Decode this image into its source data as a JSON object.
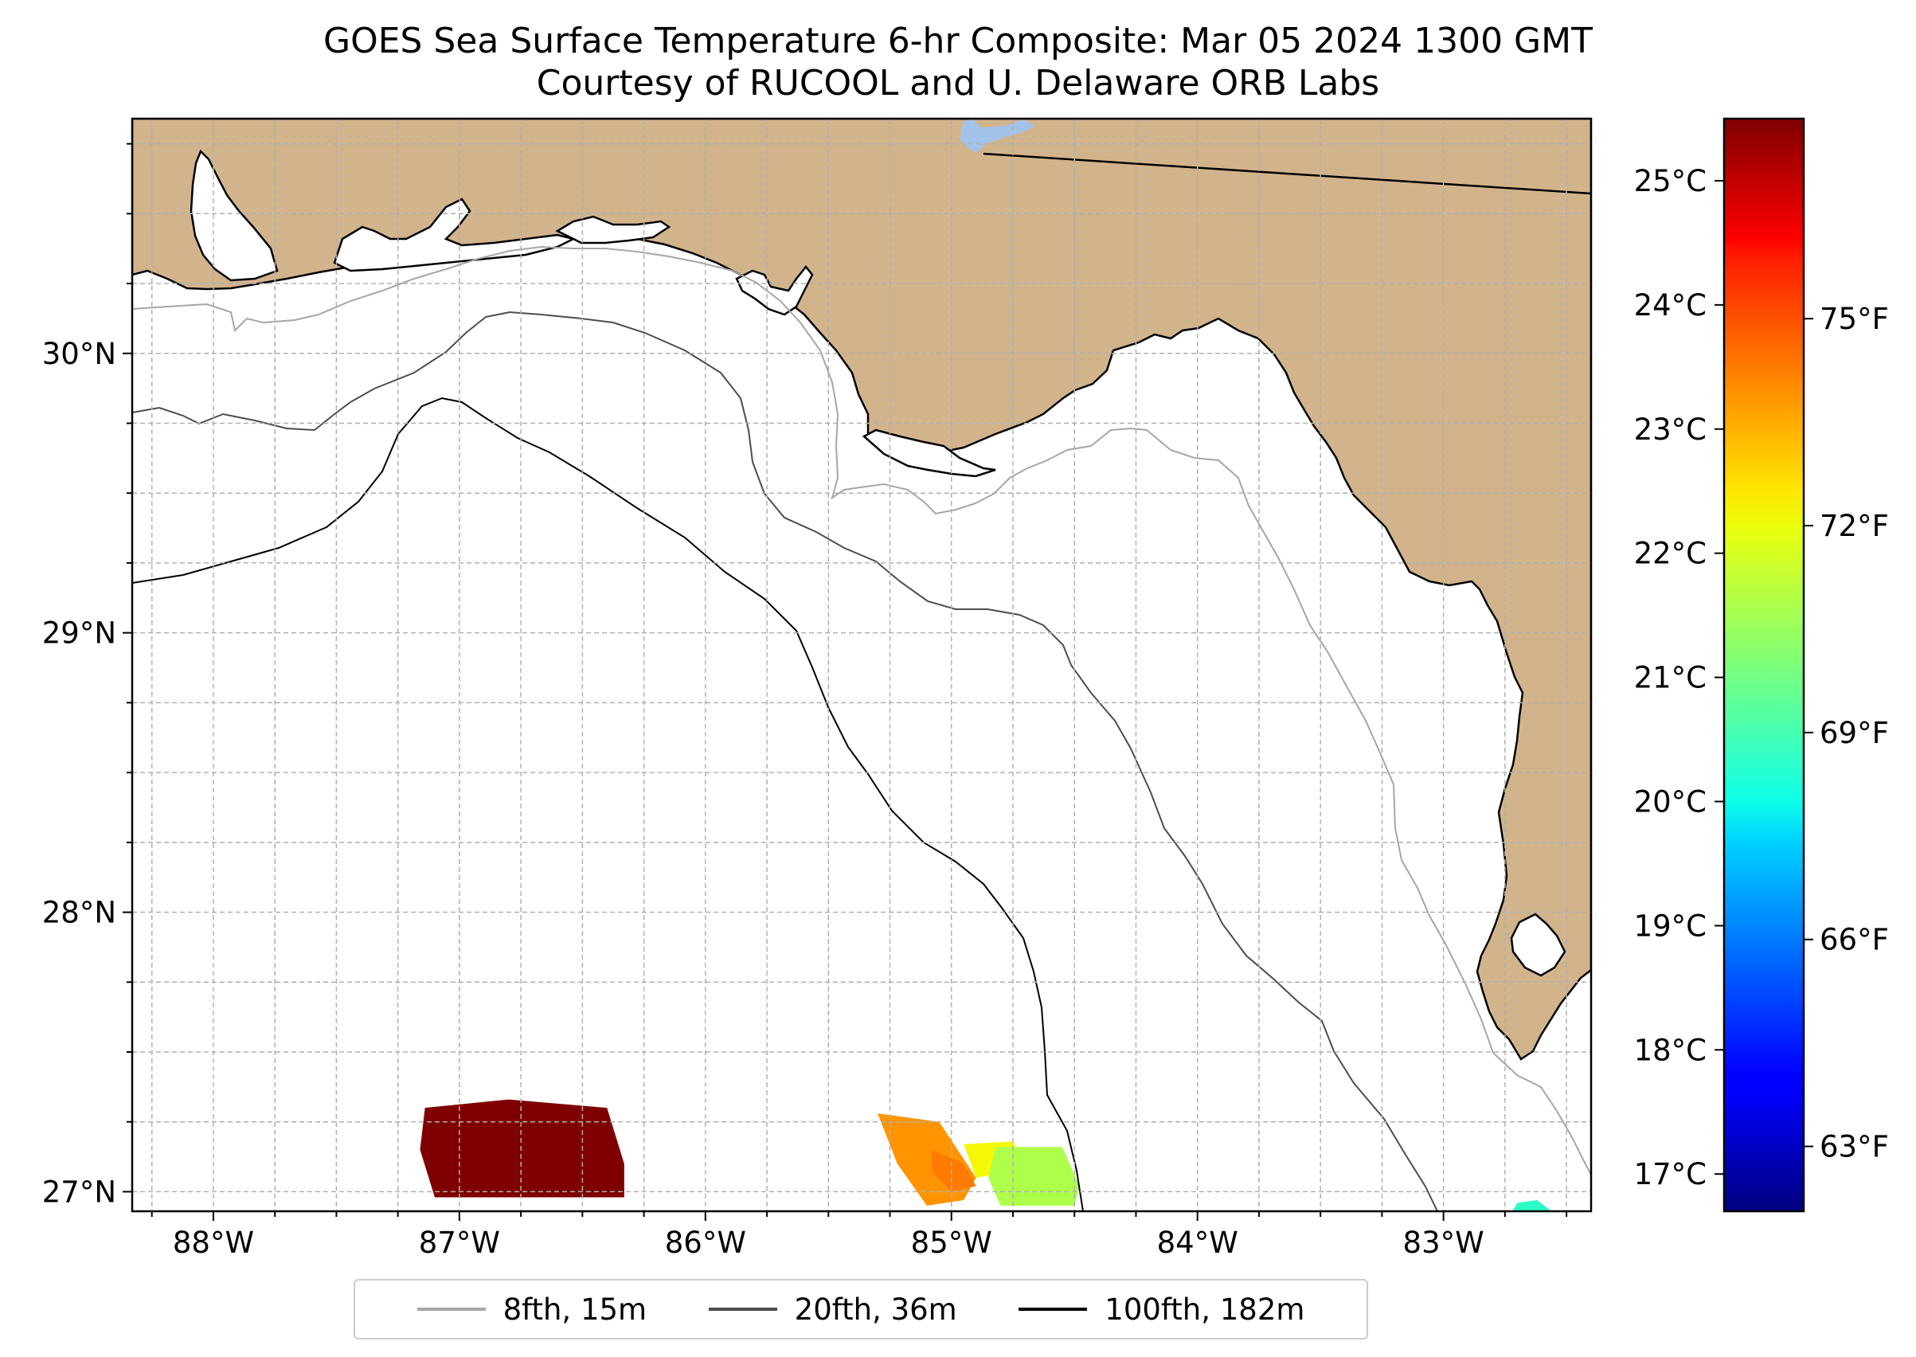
{
  "title": {
    "line1": "GOES Sea Surface Temperature 6-hr Composite: Mar 05 2024 1300 GMT",
    "line2": "Courtesy of RUCOOL and U. Delaware ORB Labs"
  },
  "map": {
    "lon_range": [
      -88.33,
      -82.4
    ],
    "lat_range": [
      26.93,
      30.84
    ],
    "lon_ticks": [
      {
        "value": -88,
        "label": "88°W"
      },
      {
        "value": -87,
        "label": "87°W"
      },
      {
        "value": -86,
        "label": "86°W"
      },
      {
        "value": -85,
        "label": "85°W"
      },
      {
        "value": -84,
        "label": "84°W"
      },
      {
        "value": -83,
        "label": "83°W"
      }
    ],
    "lat_ticks": [
      {
        "value": 27,
        "label": "27°N"
      },
      {
        "value": 28,
        "label": "28°N"
      },
      {
        "value": 29,
        "label": "29°N"
      },
      {
        "value": 30,
        "label": "30°N"
      }
    ],
    "gridlines": "dashed, every 0.25°",
    "land_color": "#d2b48c",
    "water_color": "#ffffff",
    "lake_color": "#a4c2e8"
  },
  "sst_patches": [
    {
      "region": "west",
      "temp_c": 25.6,
      "color": "#7f0000"
    },
    {
      "region": "central-west",
      "temp_c": 23.3,
      "color": "#ff9400"
    },
    {
      "region": "central-core",
      "temp_c": 23.7,
      "color": "#ff7a00"
    },
    {
      "region": "central-east",
      "temp_c": 22.3,
      "color": "#f4f806"
    },
    {
      "region": "east",
      "temp_c": 21.6,
      "color": "#adff49"
    },
    {
      "region": "southeast",
      "temp_c": 20.0,
      "color": "#2affc8"
    }
  ],
  "colorbar": {
    "range_c": [
      16.7,
      25.5
    ],
    "colormap": "jet",
    "celsius_ticks": [
      {
        "value": 17,
        "label": "17°C"
      },
      {
        "value": 18,
        "label": "18°C"
      },
      {
        "value": 19,
        "label": "19°C"
      },
      {
        "value": 20,
        "label": "20°C"
      },
      {
        "value": 21,
        "label": "21°C"
      },
      {
        "value": 22,
        "label": "22°C"
      },
      {
        "value": 23,
        "label": "23°C"
      },
      {
        "value": 24,
        "label": "24°C"
      },
      {
        "value": 25,
        "label": "25°C"
      }
    ],
    "fahrenheit_ticks": [
      {
        "value": 63,
        "label": "63°F"
      },
      {
        "value": 66,
        "label": "66°F"
      },
      {
        "value": 69,
        "label": "69°F"
      },
      {
        "value": 72,
        "label": "72°F"
      },
      {
        "value": 75,
        "label": "75°F"
      }
    ]
  },
  "legend": [
    {
      "label": "8fth, 15m",
      "color": "#a6a6a6",
      "depth_m": 15
    },
    {
      "label": "20fth, 36m",
      "color": "#4d4d4d",
      "depth_m": 36
    },
    {
      "label": "100fth, 182m",
      "color": "#000000",
      "depth_m": 182
    }
  ]
}
